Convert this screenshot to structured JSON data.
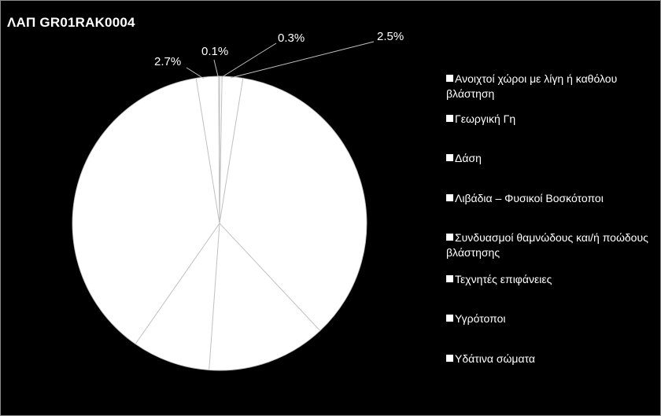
{
  "chart_data": {
    "type": "pie",
    "title": "ΛΑΠ GR01RAK0004",
    "categories": [
      "Ανοιχτοί χώροι με λίγη ή καθόλου βλάστηση",
      "Γεωργική Γη",
      "Δάση",
      "Λιβάδια – Φυσικοί Βοσκότοποι",
      "Συνδυασμοί θαμνώδους και/ή ποώδους βλάστησης",
      "Τεχνητές επιφάνειες",
      "Υγρότοποι",
      "Υδάτινα σώματα"
    ],
    "values": [
      0.3,
      2.5,
      39.0,
      14.4,
      9.4,
      41.5,
      2.7,
      0.1
    ],
    "data_labels": [
      "0.3%",
      "2.5%",
      "",
      "",
      "",
      "",
      "2.7%",
      "0.1%"
    ],
    "legend_position": "right",
    "slice_color": "#ffffff",
    "edge_color": "#bfbfbf",
    "background_color": "#000000"
  }
}
